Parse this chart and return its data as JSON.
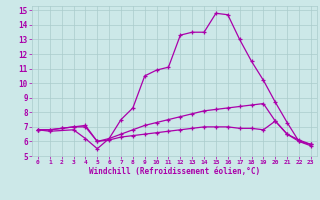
{
  "xlabel": "Windchill (Refroidissement éolien,°C)",
  "background_color": "#cce8e8",
  "line_color": "#aa00aa",
  "grid_color": "#aacccc",
  "xlim": [
    -0.5,
    23.5
  ],
  "ylim": [
    5,
    15.3
  ],
  "xticks": [
    0,
    1,
    2,
    3,
    4,
    5,
    6,
    7,
    8,
    9,
    10,
    11,
    12,
    13,
    14,
    15,
    16,
    17,
    18,
    19,
    20,
    21,
    22,
    23
  ],
  "yticks": [
    5,
    6,
    7,
    8,
    9,
    10,
    11,
    12,
    13,
    14,
    15
  ],
  "series1_x": [
    0,
    1,
    3,
    4,
    5,
    6,
    7,
    8,
    9,
    10,
    11,
    12,
    13,
    14,
    15,
    16,
    17,
    18,
    19,
    20,
    21,
    22,
    23
  ],
  "series1_y": [
    6.8,
    6.7,
    6.8,
    6.2,
    5.5,
    6.2,
    7.5,
    8.3,
    10.5,
    10.9,
    11.1,
    13.3,
    13.5,
    13.5,
    14.8,
    14.7,
    13.0,
    11.5,
    10.2,
    8.7,
    7.3,
    6.0,
    5.8
  ],
  "series2_x": [
    0,
    1,
    2,
    3,
    4,
    5,
    6,
    7,
    8,
    9,
    10,
    11,
    12,
    13,
    14,
    15,
    16,
    17,
    18,
    19,
    20,
    21,
    22,
    23
  ],
  "series2_y": [
    6.8,
    6.8,
    6.9,
    7.0,
    7.1,
    6.0,
    6.2,
    6.5,
    6.8,
    7.1,
    7.3,
    7.5,
    7.7,
    7.9,
    8.1,
    8.2,
    8.3,
    8.4,
    8.5,
    8.6,
    7.4,
    6.5,
    6.1,
    5.8
  ],
  "series3_x": [
    0,
    1,
    2,
    3,
    4,
    5,
    6,
    7,
    8,
    9,
    10,
    11,
    12,
    13,
    14,
    15,
    16,
    17,
    18,
    19,
    20,
    21,
    22,
    23
  ],
  "series3_y": [
    6.8,
    6.8,
    6.9,
    7.0,
    7.0,
    6.0,
    6.1,
    6.3,
    6.4,
    6.5,
    6.6,
    6.7,
    6.8,
    6.9,
    7.0,
    7.0,
    7.0,
    6.9,
    6.9,
    6.8,
    7.4,
    6.5,
    6.0,
    5.7
  ]
}
